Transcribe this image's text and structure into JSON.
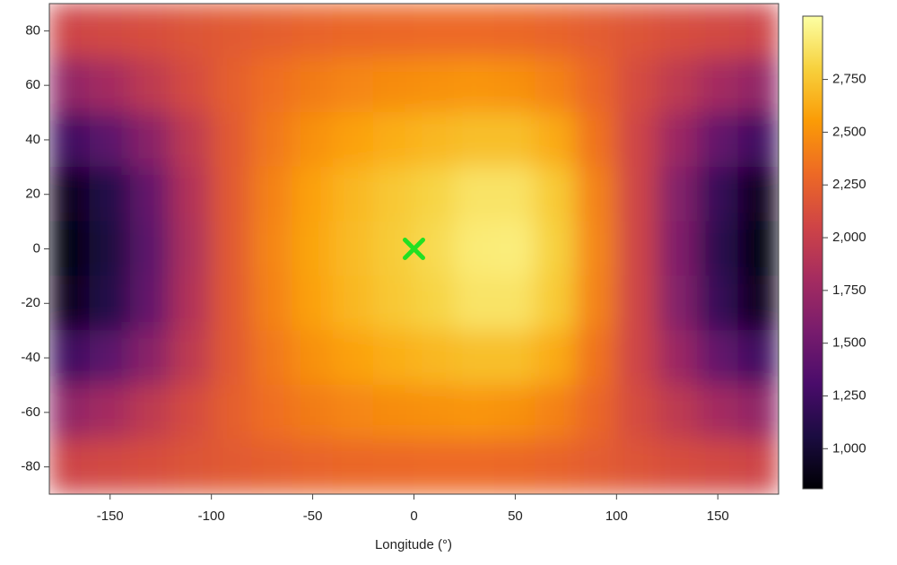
{
  "chart_data": {
    "type": "heatmap",
    "x_label": "Longitude (°)",
    "x": [
      -170,
      -150,
      -130,
      -110,
      -90,
      -70,
      -50,
      -30,
      -10,
      10,
      30,
      50,
      70,
      90,
      110,
      130,
      150,
      170
    ],
    "y": [
      80,
      60,
      40,
      20,
      0,
      -20,
      -40,
      -60,
      -80
    ],
    "cell_width": 20,
    "cell_height": 20,
    "values": [
      [
        2050,
        2080,
        2120,
        2160,
        2200,
        2230,
        2260,
        2280,
        2290,
        2300,
        2300,
        2290,
        2260,
        2220,
        2170,
        2120,
        2080,
        2050
      ],
      [
        1700,
        1800,
        1950,
        2100,
        2230,
        2330,
        2400,
        2450,
        2480,
        2500,
        2520,
        2500,
        2430,
        2280,
        2100,
        1950,
        1800,
        1700
      ],
      [
        1250,
        1400,
        1650,
        1950,
        2200,
        2380,
        2500,
        2580,
        2640,
        2680,
        2720,
        2720,
        2620,
        2350,
        2050,
        1750,
        1450,
        1250
      ],
      [
        900,
        1100,
        1450,
        1880,
        2200,
        2430,
        2580,
        2680,
        2760,
        2820,
        2900,
        2900,
        2770,
        2430,
        2050,
        1620,
        1200,
        900
      ],
      [
        850,
        1050,
        1400,
        1850,
        2200,
        2450,
        2600,
        2700,
        2780,
        2850,
        2940,
        2950,
        2800,
        2450,
        2050,
        1600,
        1150,
        850
      ],
      [
        900,
        1100,
        1450,
        1880,
        2200,
        2430,
        2580,
        2680,
        2760,
        2820,
        2900,
        2900,
        2770,
        2430,
        2050,
        1620,
        1200,
        900
      ],
      [
        1250,
        1400,
        1650,
        1950,
        2200,
        2380,
        2500,
        2580,
        2640,
        2680,
        2720,
        2720,
        2620,
        2350,
        2050,
        1750,
        1450,
        1250
      ],
      [
        1700,
        1800,
        1950,
        2100,
        2230,
        2330,
        2400,
        2450,
        2480,
        2500,
        2520,
        2500,
        2430,
        2280,
        2100,
        1950,
        1800,
        1700
      ],
      [
        2050,
        2080,
        2120,
        2160,
        2200,
        2230,
        2260,
        2280,
        2290,
        2300,
        2300,
        2290,
        2260,
        2220,
        2170,
        2120,
        2080,
        2050
      ]
    ],
    "xlim": [
      -180,
      180
    ],
    "ylim": [
      -90,
      90
    ],
    "xticks": [
      -150,
      -100,
      -50,
      0,
      50,
      100,
      150
    ],
    "yticks": [
      -80,
      -60,
      -40,
      -20,
      0,
      20,
      40,
      60,
      80
    ],
    "colormap": [
      "#000004",
      "#1b0c41",
      "#4a0c6b",
      "#781c6d",
      "#a52c60",
      "#cf4446",
      "#ed6925",
      "#fb9b06",
      "#f7d13d",
      "#fcffa4"
    ],
    "clim": [
      810,
      3050
    ],
    "cticks": [
      {
        "value": 1000,
        "label": "1,000"
      },
      {
        "value": 1250,
        "label": "1,250"
      },
      {
        "value": 1500,
        "label": "1,500"
      },
      {
        "value": 1750,
        "label": "1,750"
      },
      {
        "value": 2000,
        "label": "2,000"
      },
      {
        "value": 2250,
        "label": "2,250"
      },
      {
        "value": 2500,
        "label": "2,500"
      },
      {
        "value": 2750,
        "label": "2,750"
      }
    ],
    "marker": {
      "x": 0,
      "y": 0,
      "color": "#22e022"
    }
  }
}
